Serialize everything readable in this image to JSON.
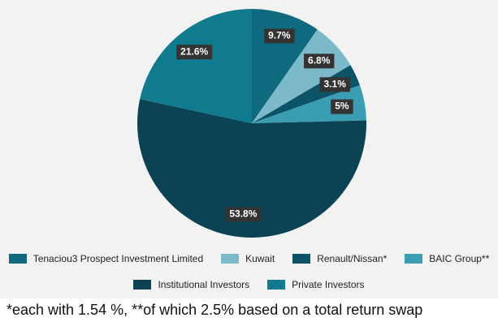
{
  "chart_data": {
    "type": "pie",
    "categories": [
      "Tenaciou3 Prospect Investment Limited",
      "Kuwait",
      "Renault/Nissan*",
      "BAIC Group**",
      "Institutional Investors",
      "Private Investors"
    ],
    "values": [
      9.7,
      6.8,
      3.1,
      5,
      53.8,
      21.6
    ],
    "value_labels": [
      "9.7%",
      "6.8%",
      "3.1%",
      "5%",
      "53.8%",
      "21.6%"
    ],
    "colors": [
      "#0f6a7f",
      "#7cb9c9",
      "#0d5367",
      "#3b9db2",
      "#0b4354",
      "#107a8f"
    ]
  },
  "footnote": "*each with 1.54 %, **of which 2.5% based on a total return swap"
}
